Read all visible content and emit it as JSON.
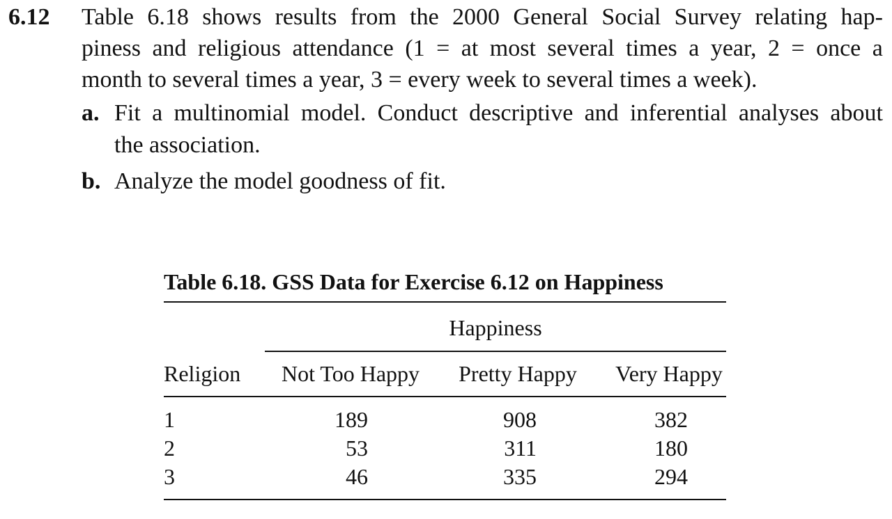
{
  "exercise": {
    "number": "6.12",
    "intro_lines": [
      [
        "Table",
        "6.18",
        "shows",
        "results",
        "from",
        "the",
        "2000",
        "General",
        "Social",
        "Survey",
        "relating",
        "hap-"
      ],
      [
        "piness",
        "and",
        "religious",
        "attendance",
        "(1",
        "=",
        "at",
        "most",
        "several",
        "times",
        "a",
        "year,",
        "2",
        "=",
        "once",
        "a"
      ],
      "month to several times a year, 3 = every week to several times a week)."
    ],
    "parts": [
      {
        "label": "a.",
        "line1": [
          "Fit",
          "a",
          "multinomial",
          "model.",
          "Conduct",
          "descriptive",
          "and",
          "inferential",
          "analyses",
          "about"
        ],
        "line2": "the association."
      },
      {
        "label": "b.",
        "line1": "Analyze the model goodness of fit."
      }
    ]
  },
  "table": {
    "caption": "Table  6.18.  GSS Data for Exercise 6.12 on Happiness",
    "spanner": "Happiness",
    "stub_header": "Religion",
    "column_headers": [
      "Not Too Happy",
      "Pretty Happy",
      "Very Happy"
    ],
    "rows": [
      {
        "religion": "1",
        "values": [
          "189",
          "908",
          "382"
        ]
      },
      {
        "religion": "2",
        "values": [
          "53",
          "311",
          "180"
        ]
      },
      {
        "religion": "3",
        "values": [
          "46",
          "335",
          "294"
        ]
      }
    ]
  }
}
